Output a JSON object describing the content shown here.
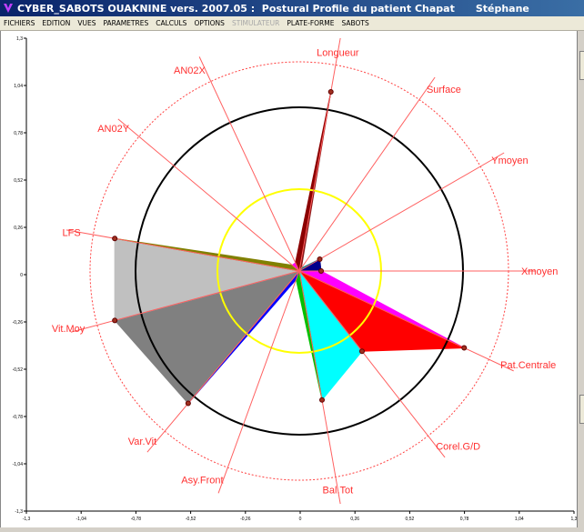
{
  "window": {
    "title": "CYBER_SABOTS OUAKNINE vers. 2007.05 :  Postural Profile du patient Chapat      Stéphane"
  },
  "menu": [
    {
      "label": "FICHIERS",
      "enabled": true
    },
    {
      "label": "EDITION",
      "enabled": true
    },
    {
      "label": "VUES",
      "enabled": true
    },
    {
      "label": "PARAMETRES",
      "enabled": true
    },
    {
      "label": "CALCULS",
      "enabled": true
    },
    {
      "label": "OPTIONS",
      "enabled": true
    },
    {
      "label": "STIMULATEUR",
      "enabled": false
    },
    {
      "label": "PLATE-FORME",
      "enabled": true
    },
    {
      "label": "SABOTS",
      "enabled": true
    }
  ],
  "chart_data": {
    "type": "radar",
    "xlim": [
      -1.3,
      1.3
    ],
    "ylim": [
      -1.3,
      1.3
    ],
    "x_ticks": [
      "-1,3",
      "-1,04",
      "-0,78",
      "-0,52",
      "-0,26",
      "0",
      "0,26",
      "0,52",
      "0,78",
      "1,04",
      "1,3"
    ],
    "y_ticks": [
      "1,3",
      "1,04",
      "0,78",
      "0,52",
      "0,26",
      "0",
      "-0,26",
      "-0,52",
      "-0,78",
      "-1,04",
      "-1,3"
    ],
    "reference_circles": [
      {
        "radius": 0.45,
        "color": "#ffff00",
        "style": "solid"
      },
      {
        "radius": 0.9,
        "color": "#000000",
        "style": "solid"
      },
      {
        "radius": 1.15,
        "color": "#ff4040",
        "style": "dotted"
      }
    ],
    "axes": [
      {
        "label": "Longueur",
        "angle_deg": 80
      },
      {
        "label": "Surface",
        "angle_deg": 55
      },
      {
        "label": "Ymoyen",
        "angle_deg": 30
      },
      {
        "label": "Xmoyen",
        "angle_deg": 0
      },
      {
        "label": "Pat.Centrale",
        "angle_deg": -25
      },
      {
        "label": "Corel.G/D",
        "angle_deg": -52
      },
      {
        "label": "Bal.Tot",
        "angle_deg": -80
      },
      {
        "label": "Asy.Front",
        "angle_deg": -110
      },
      {
        "label": "Var.Vit",
        "angle_deg": -130
      },
      {
        "label": "Vit.Moy",
        "angle_deg": -165
      },
      {
        "label": "LFS",
        "angle_deg": 170
      },
      {
        "label": "AN02Y",
        "angle_deg": 140
      },
      {
        "label": "AN02X",
        "angle_deg": 115
      }
    ],
    "sectors": [
      {
        "from": "Longueur",
        "to": "Surface",
        "values": [
          1.0,
          0.02
        ],
        "color": "#8b1a1a"
      },
      {
        "from": "Surface",
        "to": "Ymoyen",
        "values": [
          0.02,
          0.13
        ],
        "color": "#1a8a8a"
      },
      {
        "from": "Ymoyen",
        "to": "Xmoyen",
        "values": [
          0.13,
          0.12
        ],
        "color": "#00008b"
      },
      {
        "from": "Xmoyen",
        "to": "Pat.Centrale",
        "values": [
          0.12,
          1.0
        ],
        "color": "#ff00ff"
      },
      {
        "from": "Pat.Centrale",
        "to": "Corel.G/D",
        "values": [
          1.0,
          0.56
        ],
        "color": "#ff0000"
      },
      {
        "from": "Corel.G/D",
        "to": "Bal.Tot",
        "values": [
          0.56,
          0.72
        ],
        "color": "#00ffff"
      },
      {
        "from": "Bal.Tot",
        "to": "Asy.Front",
        "values": [
          0.72,
          0.05
        ],
        "color": "#00c000"
      },
      {
        "from": "Asy.Front",
        "to": "Var.Vit",
        "values": [
          0.05,
          0.95
        ],
        "color": "#0000ff"
      },
      {
        "from": "Var.Vit",
        "to": "Vit.Moy",
        "values": [
          0.95,
          1.05
        ],
        "color": "#808080"
      },
      {
        "from": "Vit.Moy",
        "to": "LFS",
        "values": [
          1.05,
          1.03
        ],
        "color": "#c0c0c0"
      },
      {
        "from": "LFS",
        "to": "AN02Y",
        "values": [
          1.03,
          0.05
        ],
        "color": "#808000"
      },
      {
        "from": "AN02Y",
        "to": "AN02X",
        "values": [
          0.05,
          0.05
        ],
        "color": "#ff00ff"
      },
      {
        "from": "AN02X",
        "to": "Longueur",
        "values": [
          0.05,
          1.0
        ],
        "color": "#8b0000"
      }
    ],
    "xlabel": "",
    "ylabel": "",
    "grid": false
  }
}
